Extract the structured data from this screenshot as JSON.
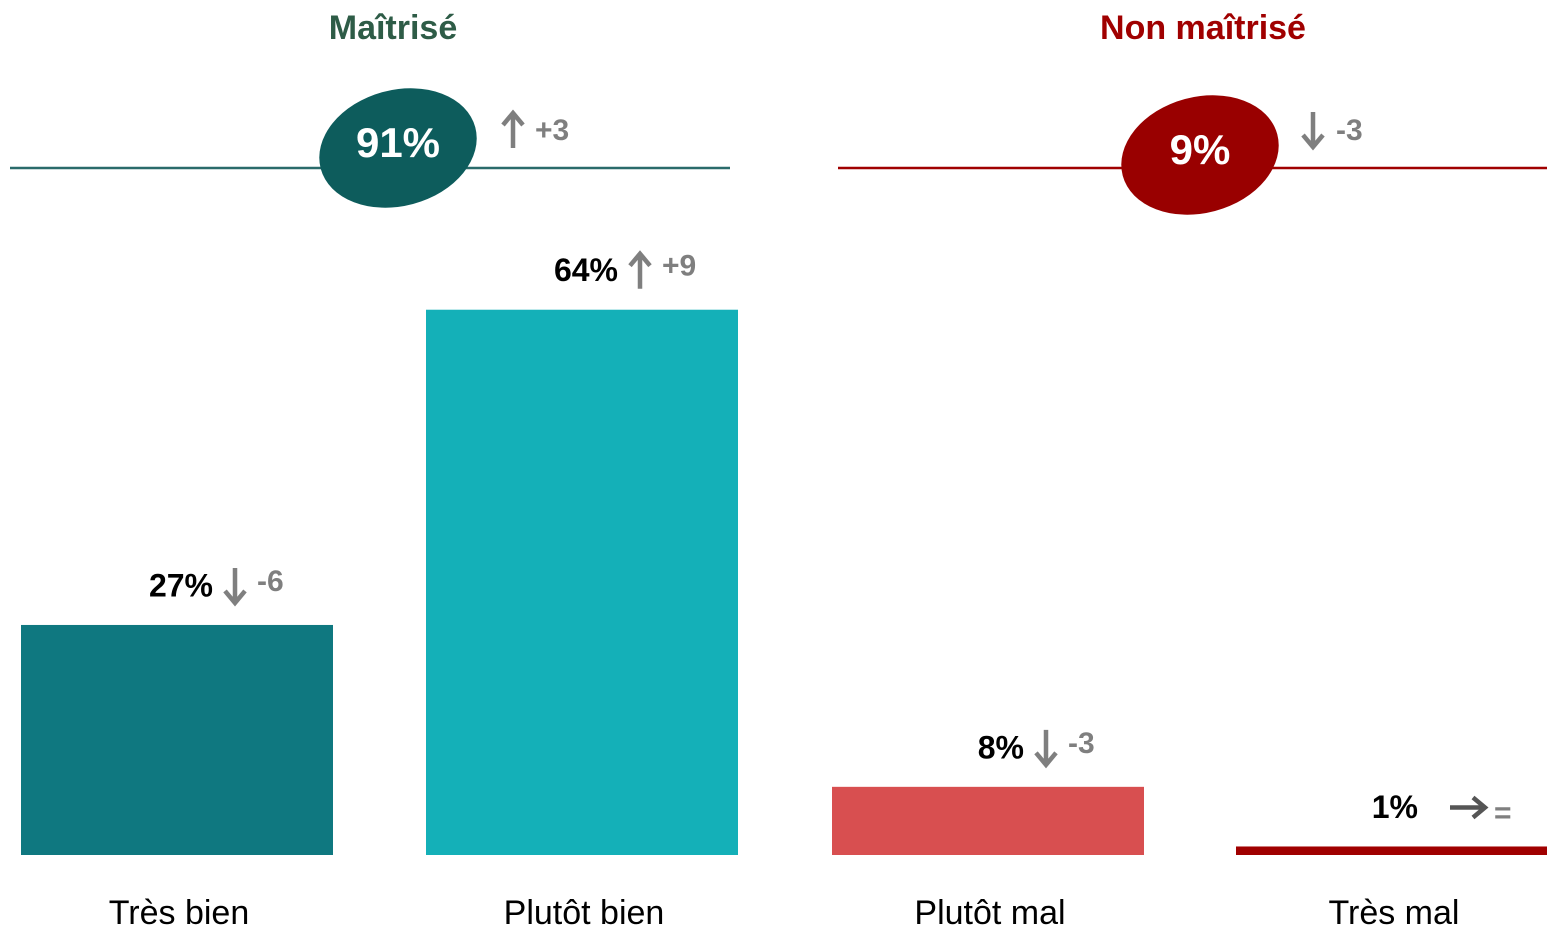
{
  "chart_data": {
    "type": "bar",
    "categories": [
      "Très bien",
      "Plutôt bien",
      "Plutôt mal",
      "Très mal"
    ],
    "values": [
      27,
      64,
      8,
      1
    ],
    "value_labels": [
      "27%",
      "64%",
      "8%",
      "1%"
    ],
    "changes": [
      "-6",
      "+9",
      "-3",
      "="
    ],
    "colors": [
      "#0f7880",
      "#14b0b8",
      "#d84f50",
      "#a00000"
    ],
    "groups": [
      {
        "title": "Maîtrisé",
        "total": 91,
        "total_label": "91%",
        "change": "+3",
        "color": "#2e5c47",
        "badge_color": "#0d5c5c",
        "line_color": "#2a6b6b"
      },
      {
        "title": "Non maîtrisé",
        "total": 9,
        "total_label": "9%",
        "change": "-3",
        "color": "#a00000",
        "badge_color": "#990000",
        "line_color": "#a00000"
      }
    ]
  }
}
